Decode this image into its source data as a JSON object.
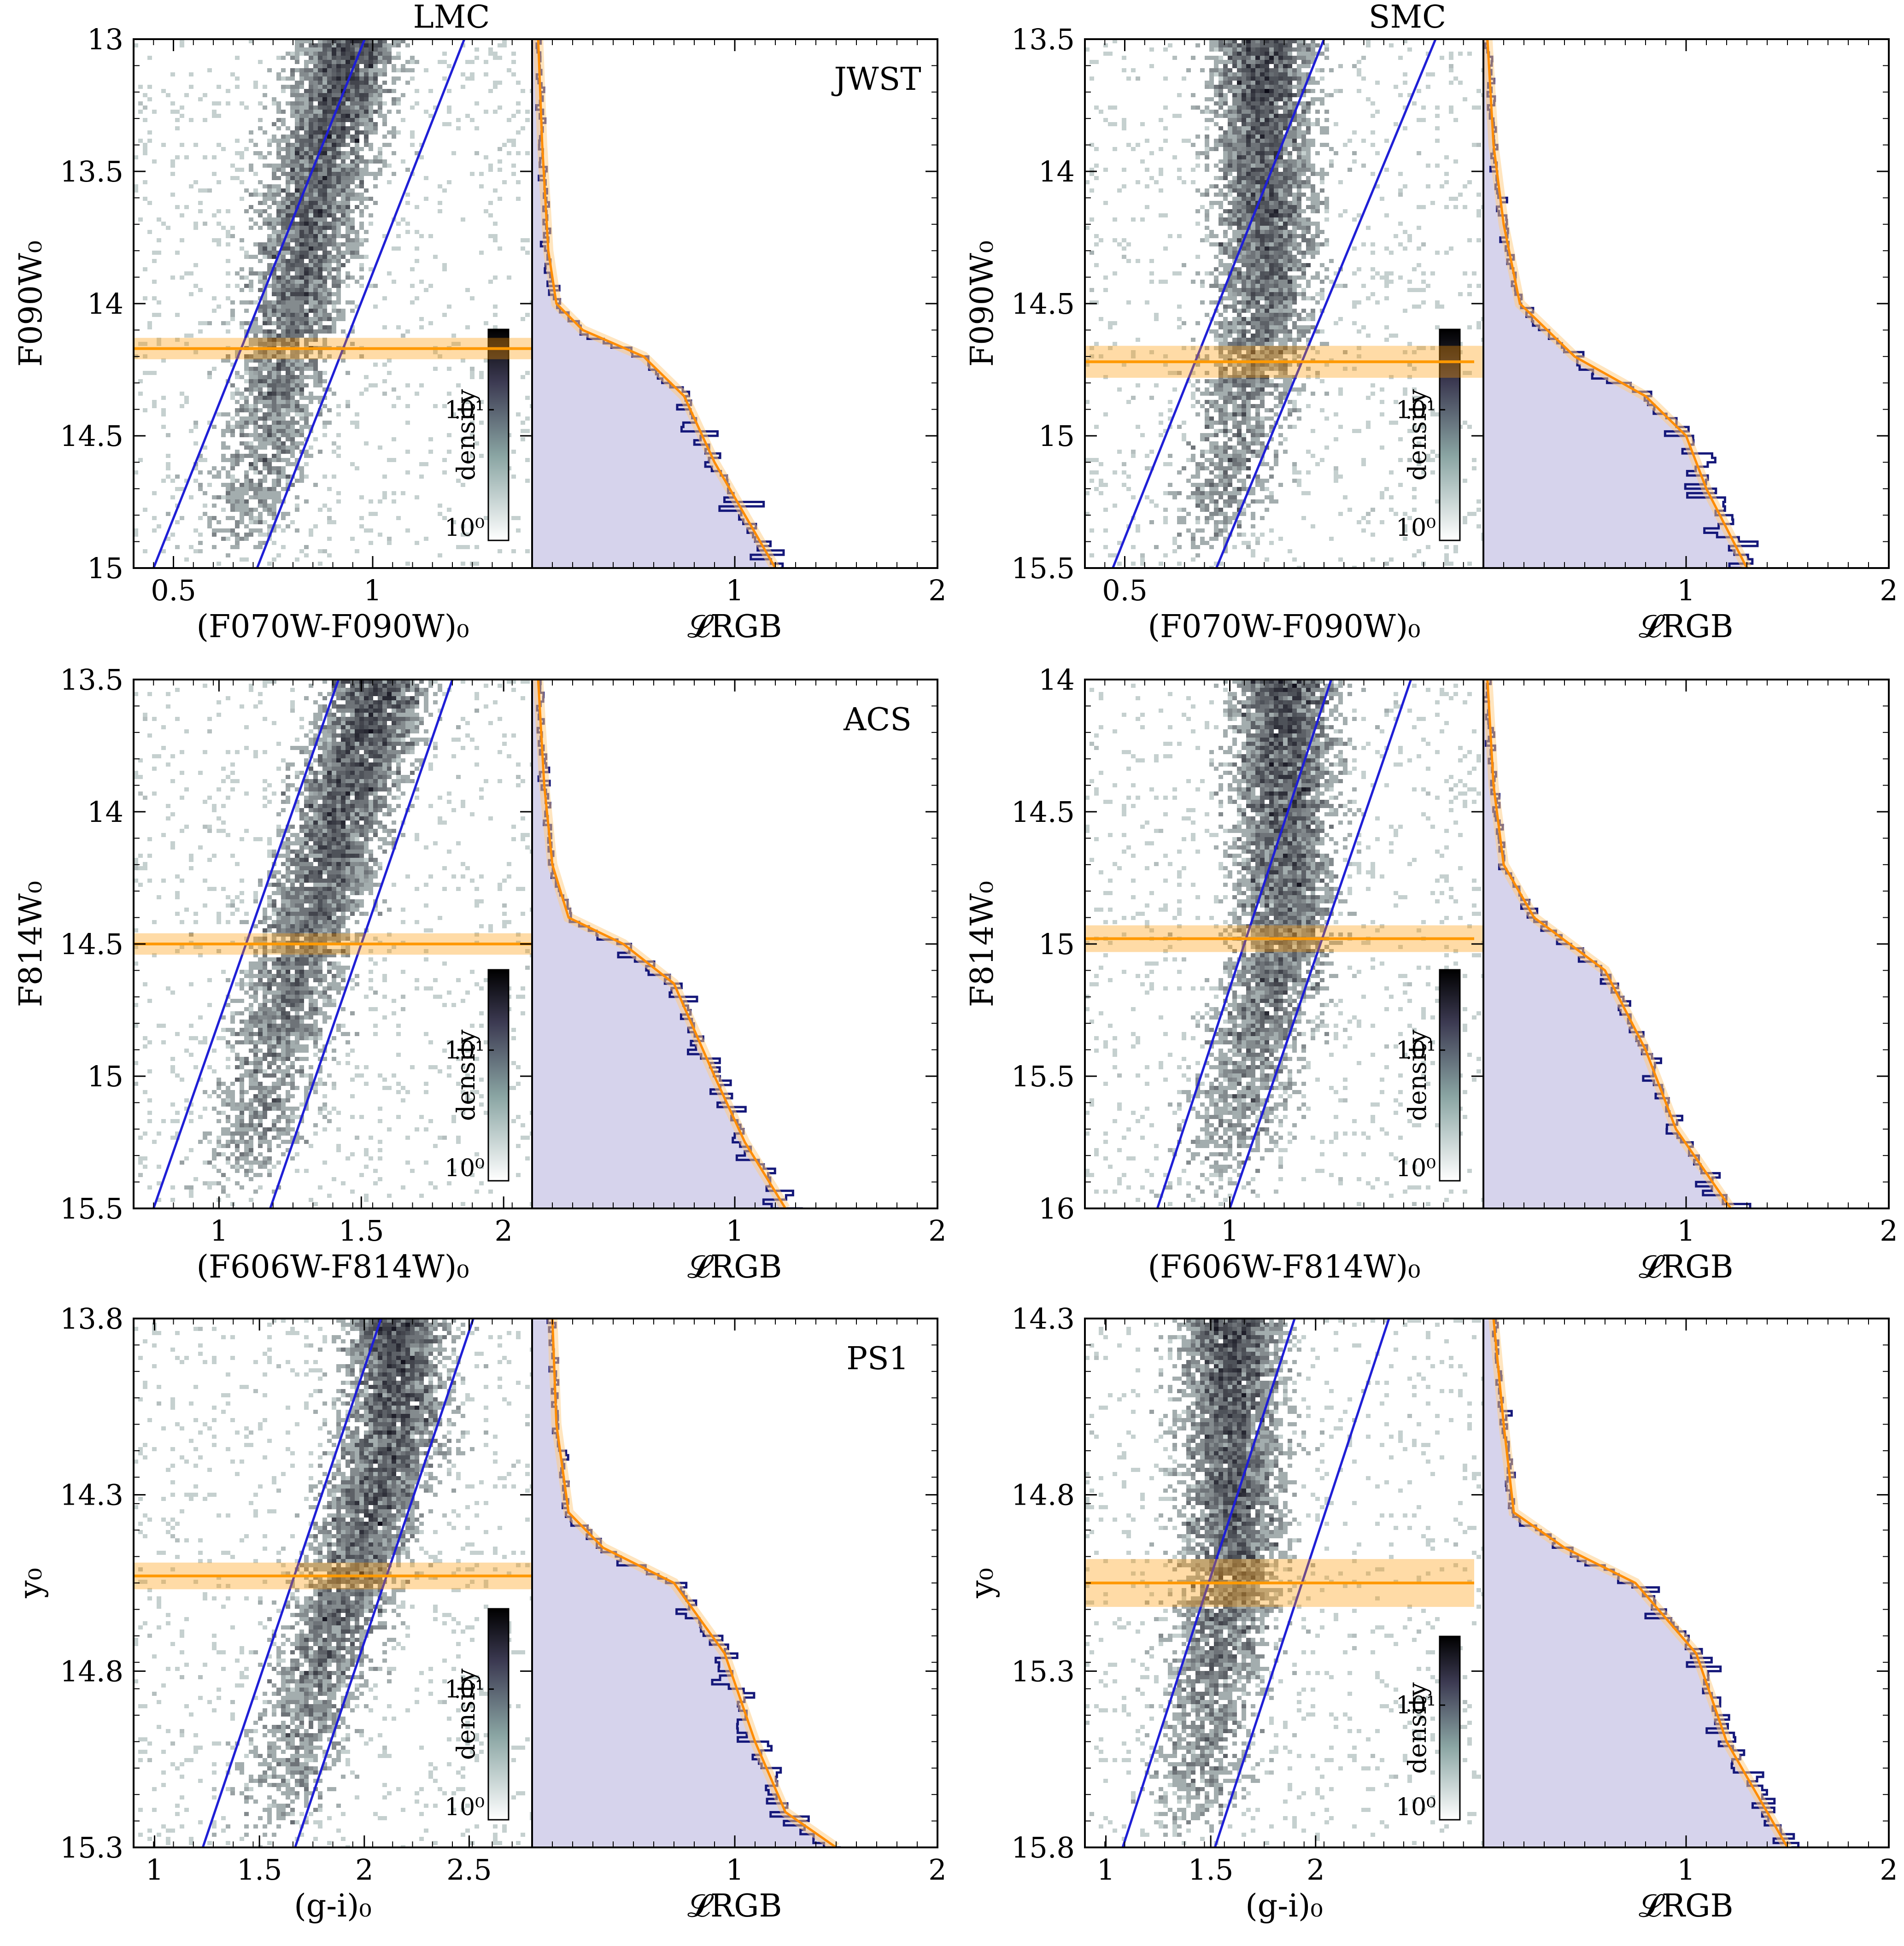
{
  "titles": {
    "left": "LMC",
    "right": "SMC"
  },
  "colorbar": {
    "label": "density",
    "ticks": [
      "10⁰",
      "10¹"
    ]
  },
  "colors": {
    "cloud_light": "#d9e6e3",
    "cloud_dark": "#0d0c18",
    "rgb_band": "#1f1fd6",
    "trgb": "#ff9900",
    "hist_fill": "#d6d3ec",
    "hist_line": "#15187a",
    "fit_line": "#ff8c00"
  },
  "chart_data": [
    {
      "type": "scatter",
      "panel": "cmd",
      "field": "LMC",
      "instrument": "JWST",
      "xlabel": "(F070W-F090W)₀",
      "ylabel": "F090W₀",
      "xlim": [
        0.4,
        1.4
      ],
      "ylim": [
        15.0,
        13.0
      ],
      "yinverted": true,
      "xticks": [
        0.5,
        1
      ],
      "yticks": [
        13,
        13.5,
        14,
        14.5,
        15
      ],
      "xtick_labels": [
        "0.5",
        "1"
      ],
      "ytick_labels": [
        "13",
        "13.5",
        "14",
        "14.5",
        "15"
      ],
      "rgb_band": [
        [
          [
            0.45,
            15.0
          ],
          [
            0.98,
            13.0
          ]
        ],
        [
          [
            0.71,
            15.0
          ],
          [
            1.23,
            13.0
          ]
        ]
      ],
      "trgb": 14.17,
      "trgb_err": 0.03,
      "cloud_ridge": [
        [
          0.66,
          15.0
        ],
        [
          0.77,
          14.3
        ],
        [
          0.85,
          13.6
        ],
        [
          0.95,
          13.0
        ]
      ]
    },
    {
      "type": "line",
      "panel": "lf",
      "field": "LMC",
      "instrument": "JWST",
      "xlabel": "𝓛RGB",
      "xlim": [
        0,
        2
      ],
      "xticks": [
        1,
        2
      ],
      "xtick_labels": [
        "1",
        "2"
      ],
      "ylim": [
        15.0,
        13.0
      ],
      "profile": [
        [
          0.03,
          13.0
        ],
        [
          0.05,
          13.4
        ],
        [
          0.08,
          13.8
        ],
        [
          0.12,
          14.0
        ],
        [
          0.25,
          14.1
        ],
        [
          0.55,
          14.2
        ],
        [
          0.75,
          14.35
        ],
        [
          0.9,
          14.6
        ],
        [
          1.05,
          14.8
        ],
        [
          1.2,
          15.0
        ]
      ]
    },
    {
      "type": "scatter",
      "panel": "cmd",
      "field": "SMC",
      "instrument": "JWST",
      "xlabel": "(F070W-F090W)₀",
      "ylabel": "F090W₀",
      "xlim": [
        0.4,
        1.4
      ],
      "ylim": [
        15.5,
        13.5
      ],
      "yinverted": true,
      "xticks": [
        0.5
      ],
      "yticks": [
        13.5,
        14,
        14.5,
        15,
        15.5
      ],
      "xtick_labels": [
        "0.5"
      ],
      "ytick_labels": [
        "13.5",
        "14",
        "14.5",
        "15",
        "15.5"
      ],
      "rgb_band": [
        [
          [
            0.47,
            15.5
          ],
          [
            1.0,
            13.5
          ]
        ],
        [
          [
            0.73,
            15.5
          ],
          [
            1.28,
            13.5
          ]
        ]
      ],
      "trgb": 14.72,
      "trgb_err": 0.05,
      "cloud_ridge": [
        [
          0.7,
          15.5
        ],
        [
          0.78,
          15.0
        ],
        [
          0.85,
          14.6
        ]
      ]
    },
    {
      "type": "line",
      "panel": "lf",
      "field": "SMC",
      "instrument": "JWST",
      "xlabel": "𝓛RGB",
      "xlim": [
        0,
        2
      ],
      "xticks": [
        1,
        2
      ],
      "xtick_labels": [
        "1",
        "2"
      ],
      "ylim": [
        15.5,
        13.5
      ],
      "profile": [
        [
          0.02,
          13.5
        ],
        [
          0.05,
          13.9
        ],
        [
          0.1,
          14.2
        ],
        [
          0.18,
          14.5
        ],
        [
          0.45,
          14.7
        ],
        [
          0.8,
          14.85
        ],
        [
          1.0,
          15.0
        ],
        [
          1.1,
          15.2
        ],
        [
          1.3,
          15.5
        ]
      ]
    },
    {
      "type": "scatter",
      "panel": "cmd",
      "field": "LMC",
      "instrument": "ACS",
      "xlabel": "(F606W-F814W)₀",
      "ylabel": "F814W₀",
      "xlim": [
        0.7,
        2.1
      ],
      "ylim": [
        15.5,
        13.5
      ],
      "yinverted": true,
      "xticks": [
        1,
        1.5,
        2
      ],
      "yticks": [
        13.5,
        14,
        14.5,
        15,
        15.5
      ],
      "xtick_labels": [
        "1",
        "1.5",
        "2"
      ],
      "ytick_labels": [
        "13.5",
        "14",
        "14.5",
        "15",
        "15.5"
      ],
      "rgb_band": [
        [
          [
            0.77,
            15.5
          ],
          [
            1.42,
            13.5
          ]
        ],
        [
          [
            1.18,
            15.5
          ],
          [
            1.82,
            13.5
          ]
        ]
      ],
      "trgb": 14.5,
      "trgb_err": 0.03,
      "cloud_ridge": [
        [
          1.05,
          15.5
        ],
        [
          1.2,
          14.9
        ],
        [
          1.35,
          14.3
        ],
        [
          1.55,
          13.6
        ]
      ]
    },
    {
      "type": "line",
      "panel": "lf",
      "field": "LMC",
      "instrument": "ACS",
      "xlabel": "𝓛RGB",
      "xlim": [
        0,
        2
      ],
      "xticks": [
        1,
        2
      ],
      "xtick_labels": [
        "1",
        "2"
      ],
      "ylim": [
        15.5,
        13.5
      ],
      "profile": [
        [
          0.03,
          13.5
        ],
        [
          0.06,
          13.9
        ],
        [
          0.1,
          14.2
        ],
        [
          0.18,
          14.4
        ],
        [
          0.45,
          14.5
        ],
        [
          0.7,
          14.65
        ],
        [
          0.9,
          15.0
        ],
        [
          1.05,
          15.25
        ],
        [
          1.25,
          15.5
        ]
      ]
    },
    {
      "type": "scatter",
      "panel": "cmd",
      "field": "SMC",
      "instrument": "ACS",
      "xlabel": "(F606W-F814W)₀",
      "ylabel": "F814W₀",
      "xlim": [
        0.6,
        1.7
      ],
      "ylim": [
        16.0,
        14.0
      ],
      "yinverted": true,
      "xticks": [
        1
      ],
      "yticks": [
        14,
        14.5,
        15,
        15.5,
        16
      ],
      "xtick_labels": [
        "1"
      ],
      "ytick_labels": [
        "14",
        "14.5",
        "15",
        "15.5",
        "16"
      ],
      "rgb_band": [
        [
          [
            0.8,
            16.0
          ],
          [
            1.28,
            14.0
          ]
        ],
        [
          [
            1.0,
            16.0
          ],
          [
            1.5,
            14.0
          ]
        ]
      ],
      "trgb": 14.98,
      "trgb_err": 0.04,
      "cloud_ridge": [
        [
          0.95,
          16.0
        ],
        [
          1.05,
          15.5
        ],
        [
          1.15,
          15.0
        ]
      ]
    },
    {
      "type": "line",
      "panel": "lf",
      "field": "SMC",
      "instrument": "ACS",
      "xlabel": "𝓛RGB",
      "xlim": [
        0,
        2
      ],
      "xticks": [
        1,
        2
      ],
      "xtick_labels": [
        "1",
        "2"
      ],
      "ylim": [
        16.0,
        14.0
      ],
      "profile": [
        [
          0.02,
          14.0
        ],
        [
          0.05,
          14.4
        ],
        [
          0.1,
          14.7
        ],
        [
          0.25,
          14.9
        ],
        [
          0.6,
          15.1
        ],
        [
          0.8,
          15.4
        ],
        [
          0.95,
          15.7
        ],
        [
          1.22,
          16.0
        ]
      ]
    },
    {
      "type": "scatter",
      "panel": "cmd",
      "field": "LMC",
      "instrument": "PS1",
      "xlabel": "(g-i)₀",
      "ylabel": "y₀",
      "xlim": [
        0.9,
        2.8
      ],
      "ylim": [
        15.3,
        13.8
      ],
      "yinverted": true,
      "xticks": [
        1,
        1.5,
        2,
        2.5
      ],
      "yticks": [
        13.8,
        14.3,
        14.8,
        15.3
      ],
      "xtick_labels": [
        "1",
        "1.5",
        "2",
        "2.5"
      ],
      "ytick_labels": [
        "13.8",
        "14.3",
        "14.8",
        "15.3"
      ],
      "rgb_band": [
        [
          [
            1.23,
            15.3
          ],
          [
            2.08,
            13.8
          ]
        ],
        [
          [
            1.67,
            15.3
          ],
          [
            2.52,
            13.8
          ]
        ]
      ],
      "trgb": 14.53,
      "trgb_err": 0.03,
      "cloud_ridge": [
        [
          1.55,
          15.3
        ],
        [
          1.75,
          14.9
        ],
        [
          1.95,
          14.5
        ],
        [
          2.15,
          14.1
        ]
      ]
    },
    {
      "type": "line",
      "panel": "lf",
      "field": "LMC",
      "instrument": "PS1",
      "xlabel": "𝓛RGB",
      "xlim": [
        0,
        2
      ],
      "xticks": [
        1,
        2
      ],
      "xtick_labels": [
        "1",
        "2"
      ],
      "ylim": [
        15.3,
        13.8
      ],
      "profile": [
        [
          0.1,
          13.8
        ],
        [
          0.12,
          14.1
        ],
        [
          0.18,
          14.35
        ],
        [
          0.35,
          14.45
        ],
        [
          0.7,
          14.55
        ],
        [
          0.95,
          14.75
        ],
        [
          1.1,
          15.0
        ],
        [
          1.25,
          15.2
        ],
        [
          1.5,
          15.3
        ]
      ]
    },
    {
      "type": "scatter",
      "panel": "cmd",
      "field": "SMC",
      "instrument": "PS1",
      "xlabel": "(g-i)₀",
      "ylabel": "y₀",
      "xlim": [
        0.9,
        2.8
      ],
      "ylim": [
        15.8,
        14.3
      ],
      "yinverted": true,
      "xticks": [
        1,
        1.5,
        2
      ],
      "yticks": [
        14.3,
        14.8,
        15.3,
        15.8
      ],
      "xtick_labels": [
        "1",
        "1.5",
        "2"
      ],
      "ytick_labels": [
        "14.3",
        "14.8",
        "15.3",
        "15.8"
      ],
      "rgb_band": [
        [
          [
            1.08,
            15.8
          ],
          [
            1.9,
            14.3
          ]
        ],
        [
          [
            1.52,
            15.8
          ],
          [
            2.35,
            14.3
          ]
        ]
      ],
      "trgb": 15.05,
      "trgb_err": 0.06,
      "cloud_ridge": [
        [
          1.4,
          15.8
        ],
        [
          1.5,
          15.4
        ],
        [
          1.6,
          15.05
        ]
      ]
    },
    {
      "type": "line",
      "panel": "lf",
      "field": "SMC",
      "instrument": "PS1",
      "xlabel": "𝓛RGB",
      "xlim": [
        0,
        2
      ],
      "xticks": [
        1,
        2
      ],
      "xtick_labels": [
        "1",
        "2"
      ],
      "ylim": [
        15.8,
        14.3
      ],
      "profile": [
        [
          0.05,
          14.3
        ],
        [
          0.1,
          14.6
        ],
        [
          0.15,
          14.85
        ],
        [
          0.4,
          14.95
        ],
        [
          0.75,
          15.05
        ],
        [
          1.05,
          15.25
        ],
        [
          1.2,
          15.5
        ],
        [
          1.5,
          15.8
        ]
      ]
    }
  ]
}
